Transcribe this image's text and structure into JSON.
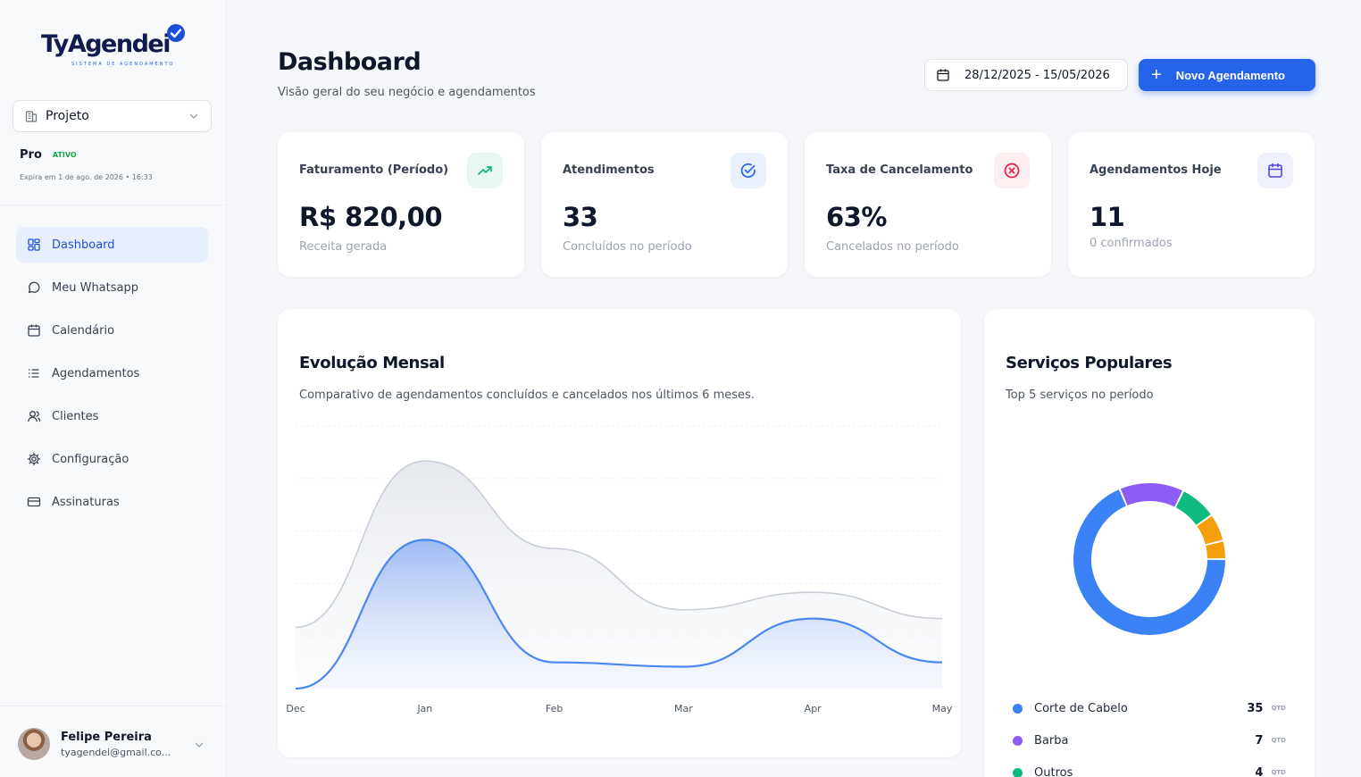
{
  "brand": {
    "name": "TyAgendei",
    "tagline": "SISTEMA DE AGENDAMENTO"
  },
  "project": {
    "label": "Projeto"
  },
  "plan": {
    "name": "Pro",
    "status": "ATIVO",
    "expires": "Expira em 1 de ago. de 2026 • 16:33"
  },
  "nav": {
    "items": [
      {
        "label": "Dashboard",
        "icon": "layout-grid-icon",
        "active": true
      },
      {
        "label": "Meu Whatsapp",
        "icon": "message-circle-icon",
        "active": false
      },
      {
        "label": "Calendário",
        "icon": "calendar-icon",
        "active": false
      },
      {
        "label": "Agendamentos",
        "icon": "list-icon",
        "active": false
      },
      {
        "label": "Clientes",
        "icon": "users-icon",
        "active": false
      },
      {
        "label": "Configuração",
        "icon": "gear-icon",
        "active": false
      },
      {
        "label": "Assinaturas",
        "icon": "credit-card-icon",
        "active": false
      }
    ]
  },
  "user": {
    "name": "Felipe Pereira",
    "email": "tyagendei@gmail.co..."
  },
  "header": {
    "title": "Dashboard",
    "subtitle": "Visão geral do seu negócio e agendamentos",
    "date_range": "28/12/2025 - 15/05/2026",
    "new_button": "Novo Agendamento"
  },
  "stats": [
    {
      "label": "Faturamento (Período)",
      "value": "R$ 820,00",
      "sub": "Receita gerada",
      "icon": "trending-up-icon",
      "color": "#10b981",
      "bg": "#e8f8f1"
    },
    {
      "label": "Atendimentos",
      "value": "33",
      "sub": "Concluídos no período",
      "icon": "check-circle-icon",
      "color": "#2563eb",
      "bg": "#eaf1fe"
    },
    {
      "label": "Taxa de Cancelamento",
      "value": "63%",
      "sub": "Cancelados no período",
      "icon": "x-circle-icon",
      "color": "#e11d48",
      "bg": "#fdeef0"
    },
    {
      "label": "Agendamentos Hoje",
      "value": "11",
      "sub": "0 confirmados",
      "icon": "calendar-icon",
      "color": "#4f46e5",
      "bg": "#eef0fd"
    }
  ],
  "monthly": {
    "title": "Evolução Mensal",
    "subtitle": "Comparativo de agendamentos concluídos e cancelados nos últimos 6 meses."
  },
  "services": {
    "title": "Serviços Populares",
    "subtitle": "Top 5 serviços no período",
    "unit": "QTD"
  },
  "chart_data": [
    {
      "type": "area",
      "categories": [
        "Dec",
        "Jan",
        "Feb",
        "Mar",
        "Apr",
        "May"
      ],
      "series": [
        {
          "values": [
            7,
            26,
            16,
            9,
            11,
            8
          ],
          "color": "#c9ced8"
        },
        {
          "values": [
            0,
            17,
            3,
            2.5,
            8,
            3
          ],
          "color": "#4a88f0"
        }
      ],
      "ylim": [
        0,
        30
      ],
      "grid": true
    },
    {
      "type": "pie",
      "donut": true,
      "labels": [
        "Corte de Cabelo",
        "Barba",
        "Outros"
      ],
      "values": [
        35,
        7,
        4
      ],
      "extra_slices": [
        3,
        2
      ],
      "colors": [
        "#3b82f6",
        "#8b5cf6",
        "#10b981",
        "#f59e0b",
        "#f59e0b"
      ],
      "legend_colors": [
        "#3b82f6",
        "#8b5cf6",
        "#10b981"
      ]
    }
  ]
}
